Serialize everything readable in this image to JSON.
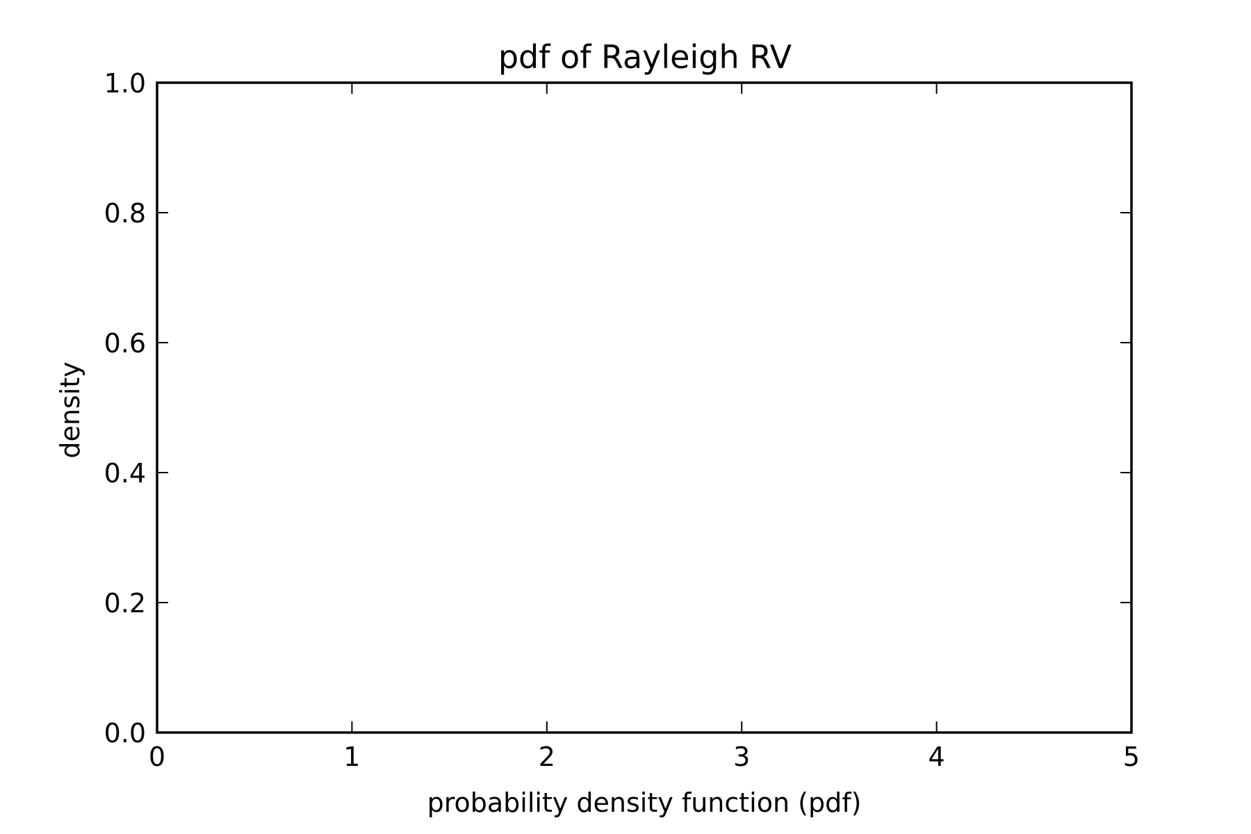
{
  "chart_data": {
    "type": "line",
    "title": "pdf of Rayleigh RV",
    "xlabel": "probability density function (pdf)",
    "ylabel": "density",
    "xlim": [
      0,
      5
    ],
    "ylim": [
      0,
      1
    ],
    "x_ticks": [
      "0",
      "1",
      "2",
      "3",
      "4",
      "5"
    ],
    "y_ticks": [
      "0.0",
      "0.2",
      "0.4",
      "0.6",
      "0.8",
      "1.0"
    ],
    "series": [],
    "grid": false
  }
}
